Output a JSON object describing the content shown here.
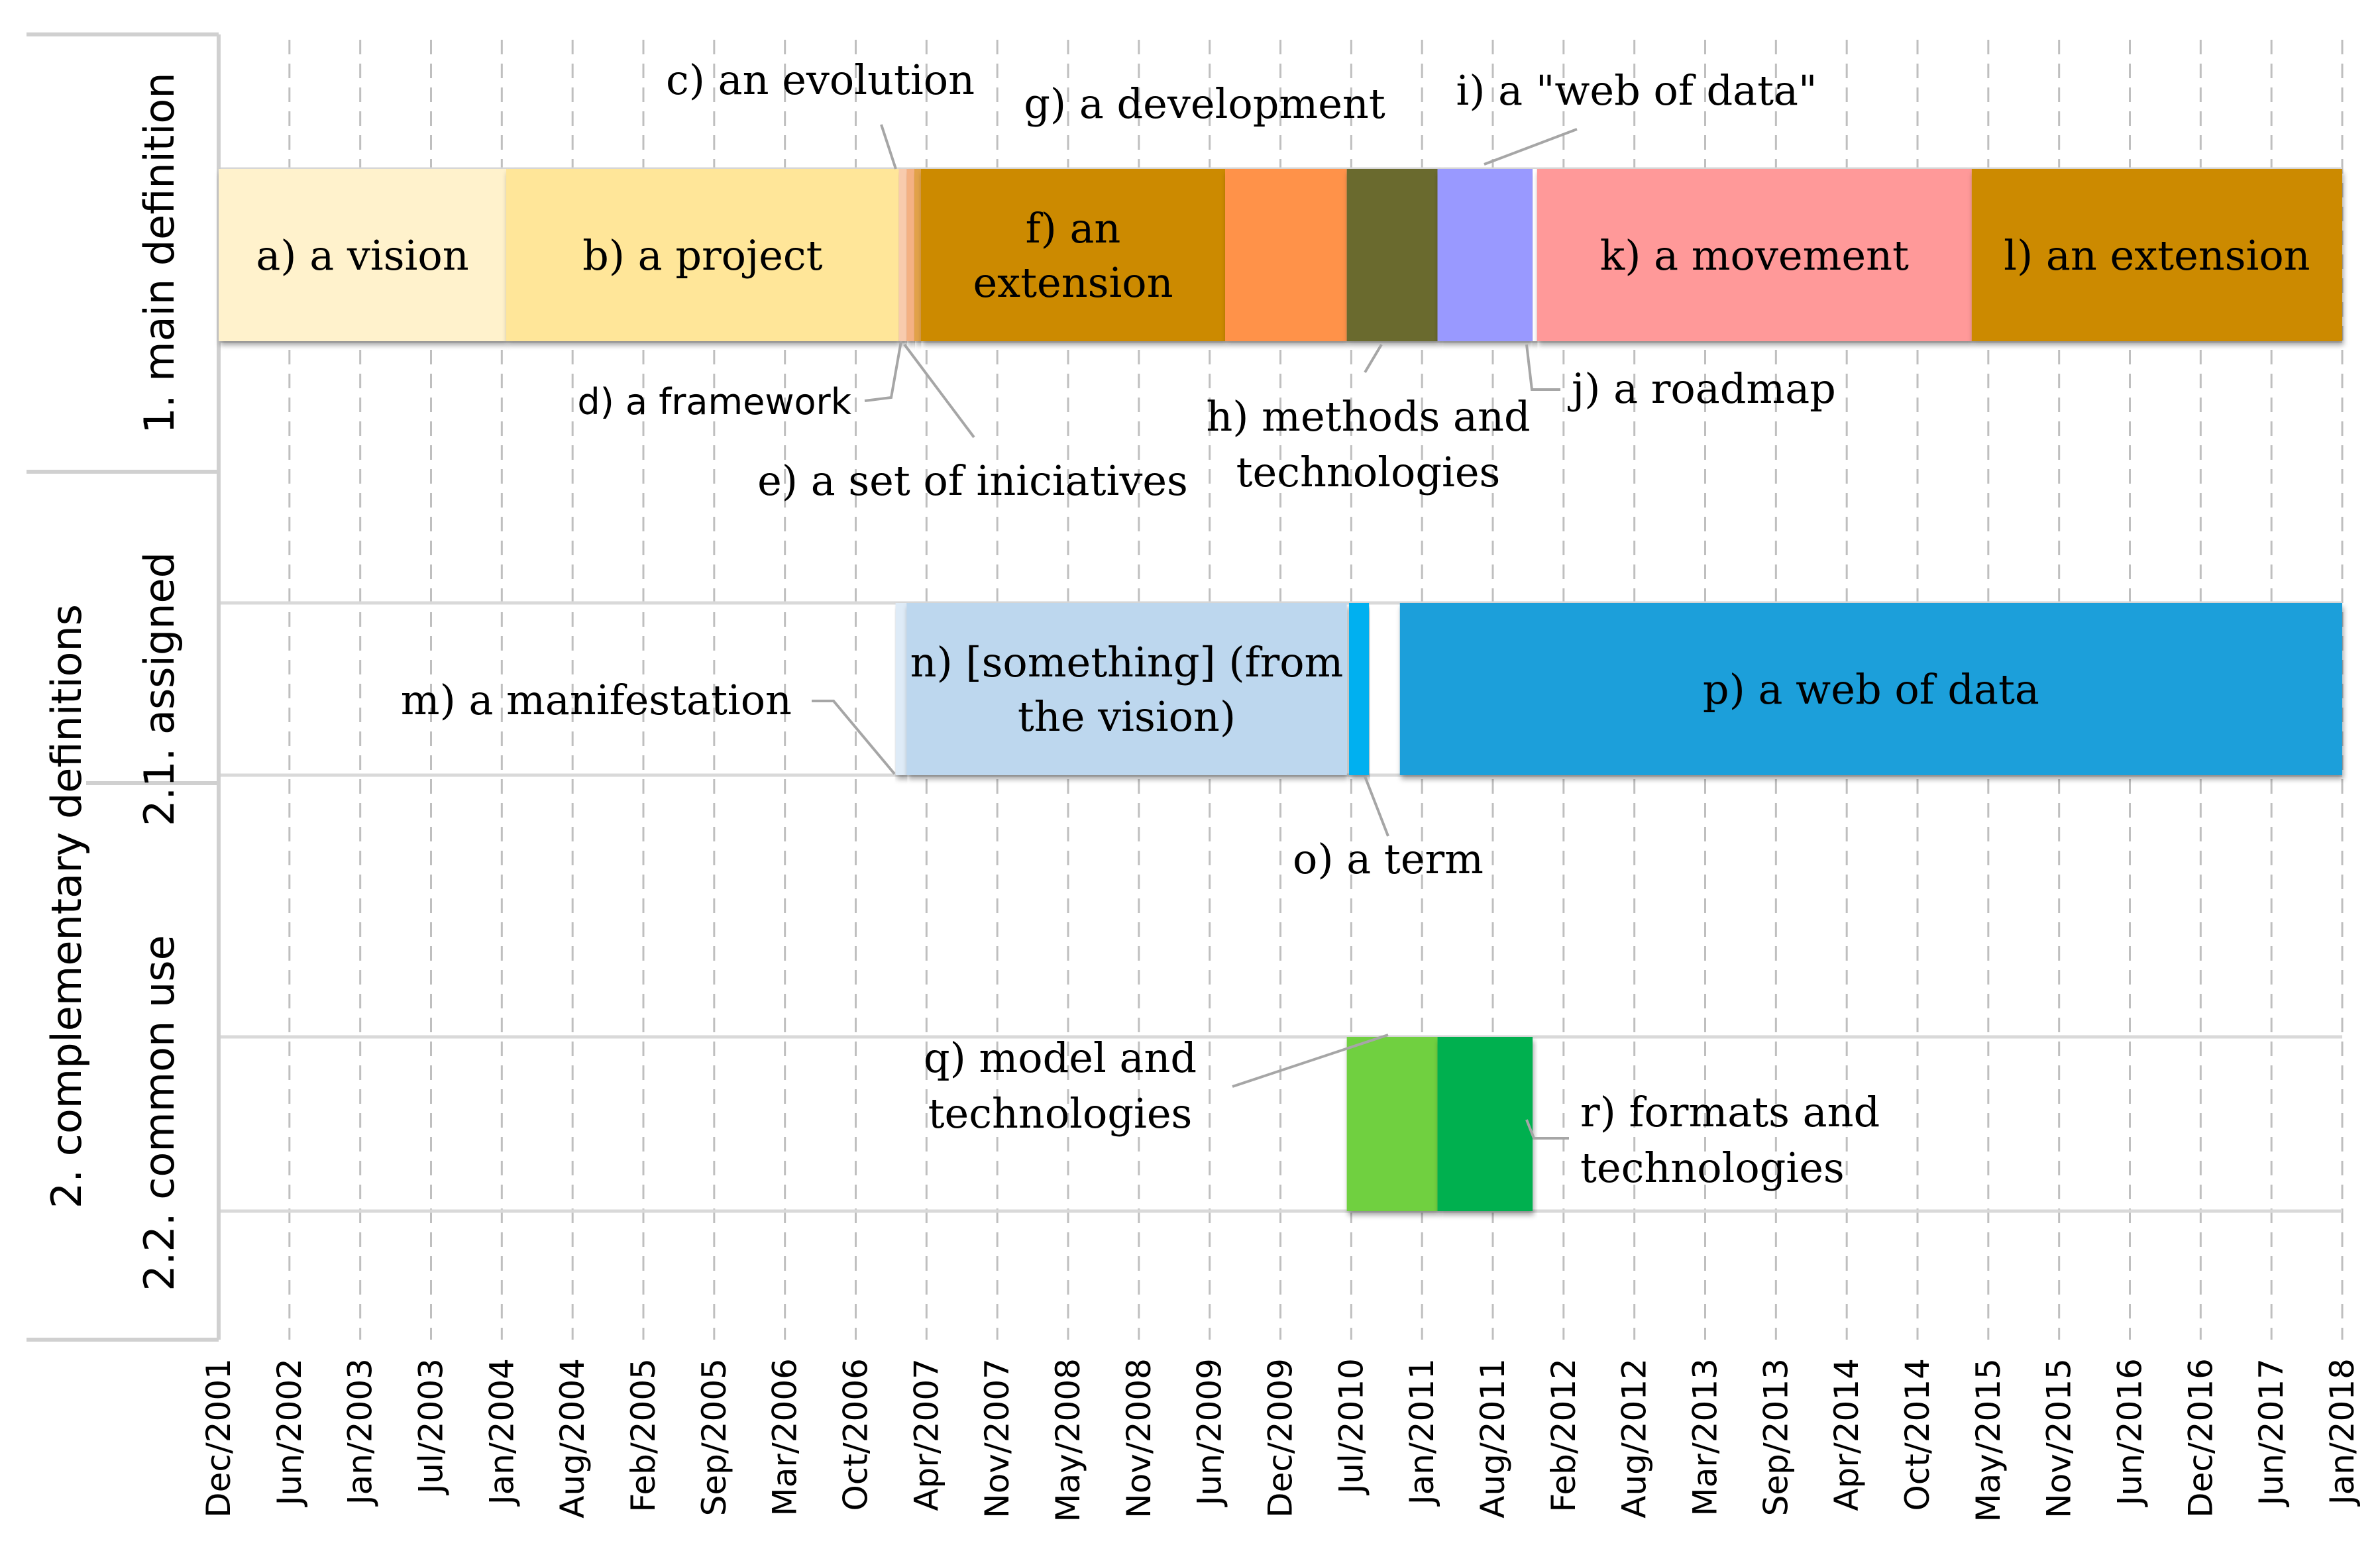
{
  "chart_data": {
    "type": "timeline",
    "title": "",
    "x_axis": {
      "ticks": [
        "Dec/2001",
        "Jun/2002",
        "Jan/2003",
        "Jul/2003",
        "Jan/2004",
        "Aug/2004",
        "Feb/2005",
        "Sep/2005",
        "Mar/2006",
        "Oct/2006",
        "Apr/2007",
        "Nov/2007",
        "May/2008",
        "Nov/2008",
        "Jun/2009",
        "Dec/2009",
        "Jul/2010",
        "Jan/2011",
        "Aug/2011",
        "Feb/2012",
        "Aug/2012",
        "Mar/2013",
        "Sep/2013",
        "Apr/2014",
        "Oct/2014",
        "May/2015",
        "Nov/2015",
        "Jun/2016",
        "Dec/2016",
        "Jun/2017",
        "Jan/2018"
      ],
      "range_months": [
        0,
        192
      ]
    },
    "row_labels": {
      "main": "1. main definition",
      "complementary": "2. complementary definitions",
      "assigned": "2.1. assigned",
      "common": "2.2. common use"
    },
    "segments": [
      {
        "id": "a",
        "row": "main",
        "start": 0,
        "end": 26,
        "color": "#FFF2CC",
        "lines": [
          "a) a vision"
        ]
      },
      {
        "id": "b",
        "row": "main",
        "start": 26,
        "end": 61.5,
        "color": "#FFE699",
        "lines": [
          "b) a project"
        ]
      },
      {
        "id": "c",
        "row": "main",
        "start": 61.5,
        "end": 62.2,
        "color": "#F8CBAD",
        "lines": []
      },
      {
        "id": "d",
        "row": "main",
        "start": 62.2,
        "end": 62.9,
        "color": "#F4B183",
        "lines": []
      },
      {
        "id": "e",
        "row": "main",
        "start": 62.9,
        "end": 63.5,
        "color": "#E2A24A",
        "lines": []
      },
      {
        "id": "f",
        "row": "main",
        "start": 63.5,
        "end": 91,
        "color": "#CC8A00",
        "lines": [
          "f) an",
          "extension"
        ]
      },
      {
        "id": "g",
        "row": "main",
        "start": 91,
        "end": 102,
        "color": "#FF9248",
        "lines": []
      },
      {
        "id": "h",
        "row": "main",
        "start": 102,
        "end": 110.2,
        "color": "#6B6B2E",
        "lines": []
      },
      {
        "id": "i",
        "row": "main",
        "start": 110.2,
        "end": 118.8,
        "color": "#9999FF",
        "lines": []
      },
      {
        "id": "j",
        "row": "main",
        "start": 118.8,
        "end": 119.2,
        "color": "#FFFFFF",
        "lines": []
      },
      {
        "id": "k",
        "row": "main",
        "start": 119.2,
        "end": 158.5,
        "color": "#FF9999",
        "lines": [
          "k) a movement"
        ]
      },
      {
        "id": "l",
        "row": "main",
        "start": 158.5,
        "end": 192,
        "color": "#CC8A00",
        "lines": [
          "l) an extension"
        ]
      },
      {
        "id": "m",
        "row": "assigned",
        "start": 61.2,
        "end": 62.2,
        "color": "#DEEBF7",
        "lines": []
      },
      {
        "id": "n",
        "row": "assigned",
        "start": 62.2,
        "end": 102,
        "color": "#BDD7EE",
        "lines": [
          "n) [something] (from",
          "the vision)"
        ]
      },
      {
        "id": "o",
        "row": "assigned",
        "start": 102.2,
        "end": 104,
        "color": "#00B0F0",
        "lines": []
      },
      {
        "id": "p",
        "row": "assigned",
        "start": 106.8,
        "end": 192,
        "color": "#1F9FDA",
        "lines": [
          "p) a web of data"
        ]
      },
      {
        "id": "q",
        "row": "common",
        "start": 102,
        "end": 110.2,
        "color": "#70D040",
        "lines": []
      },
      {
        "id": "r",
        "row": "common",
        "start": 110.2,
        "end": 118.8,
        "color": "#00B050",
        "lines": []
      }
    ],
    "callouts": [
      {
        "id": "c",
        "lines": [
          "c) an evolution"
        ]
      },
      {
        "id": "d",
        "lines": [
          "d) a framework"
        ]
      },
      {
        "id": "e",
        "lines": [
          "e) a set of iniciatives"
        ]
      },
      {
        "id": "g",
        "lines": [
          "g) a development"
        ]
      },
      {
        "id": "h",
        "lines": [
          "h) methods and",
          "technologies"
        ]
      },
      {
        "id": "i",
        "lines": [
          "i) a \"web of data\""
        ]
      },
      {
        "id": "j",
        "lines": [
          "j) a roadmap"
        ]
      },
      {
        "id": "m",
        "lines": [
          "m) a manifestation"
        ]
      },
      {
        "id": "o",
        "lines": [
          "o) a term"
        ]
      },
      {
        "id": "q",
        "lines": [
          "q) model and",
          "technologies"
        ]
      },
      {
        "id": "r",
        "lines": [
          "r) formats and",
          "technologies"
        ]
      }
    ],
    "grid": true
  }
}
